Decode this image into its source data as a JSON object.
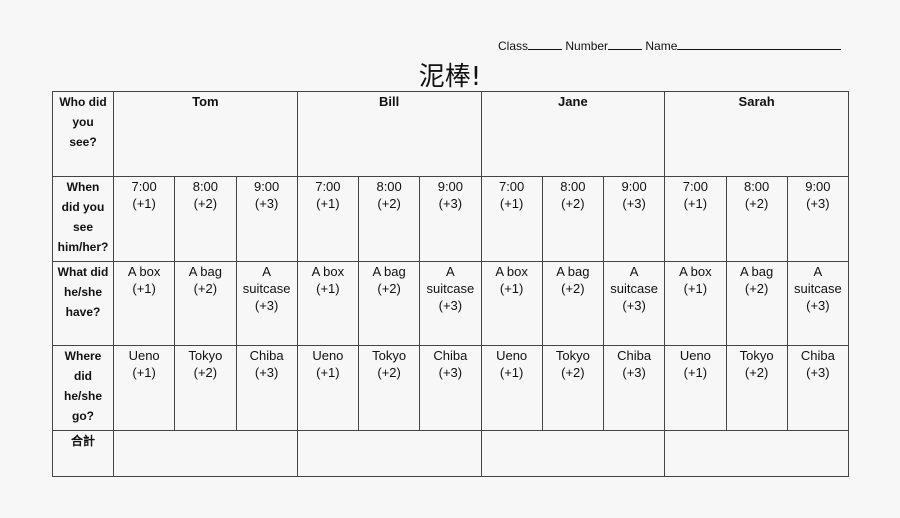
{
  "header": {
    "class_label": "Class",
    "number_label": "Number",
    "name_label": "Name"
  },
  "title": "泥棒!",
  "row_labels": [
    "Who did you see?",
    "When did you see him/her?",
    "What did he/she have?",
    "Where did he/she go?",
    "合計"
  ],
  "people": [
    "Tom",
    "Bill",
    "Jane",
    "Sarah"
  ],
  "times": [
    {
      "main": "7:00",
      "pts": "(+1)"
    },
    {
      "main": "8:00",
      "pts": "(+2)"
    },
    {
      "main": "9:00",
      "pts": "(+3)"
    }
  ],
  "items": [
    {
      "main": "A box",
      "pts": "(+1)"
    },
    {
      "main": "A bag",
      "pts": "(+2)"
    },
    {
      "main": "A suitcase",
      "pts": "(+3)"
    }
  ],
  "places": [
    {
      "main": "Ueno",
      "pts": "(+1)"
    },
    {
      "main": "Tokyo",
      "pts": "(+2)"
    },
    {
      "main": "Chiba",
      "pts": "(+3)"
    }
  ]
}
